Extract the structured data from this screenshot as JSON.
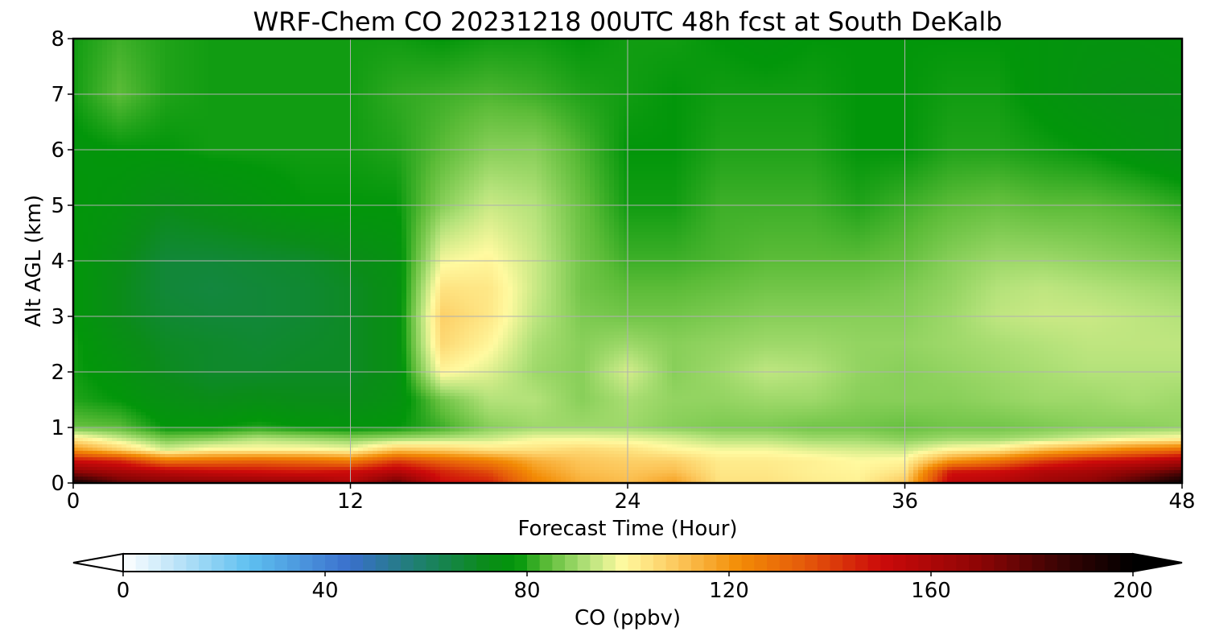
{
  "chart_data": {
    "type": "heatmap",
    "title": "WRF-Chem CO  20231218 00UTC 48h fcst at South DeKalb",
    "xlabel": "Forecast Time (Hour)",
    "ylabel": "Alt AGL (km)",
    "xlim": [
      0,
      48
    ],
    "ylim": [
      0,
      8
    ],
    "x_ticks": [
      0,
      12,
      24,
      36,
      48
    ],
    "y_ticks": [
      0,
      1,
      2,
      3,
      4,
      5,
      6,
      7,
      8
    ],
    "grid": true,
    "x_hours": [
      0,
      2,
      4,
      6,
      8,
      10,
      12,
      14,
      16,
      18,
      20,
      22,
      24,
      26,
      28,
      30,
      32,
      34,
      36,
      38,
      40,
      42,
      44,
      46,
      48
    ],
    "z_km": [
      0,
      0.2,
      0.4,
      0.6,
      0.8,
      1.0,
      1.5,
      2.0,
      2.5,
      3.0,
      3.5,
      4.0,
      5.0,
      6.0,
      7.0,
      8.0
    ],
    "co_ppbv": [
      [
        195,
        178,
        172,
        170,
        168,
        166,
        158,
        178,
        150,
        146,
        125,
        115,
        112,
        118,
        104,
        104,
        102,
        101,
        110,
        155,
        158,
        165,
        170,
        182,
        198
      ],
      [
        170,
        162,
        156,
        152,
        150,
        148,
        150,
        158,
        145,
        138,
        120,
        112,
        110,
        112,
        103,
        103,
        101,
        100,
        104,
        148,
        150,
        158,
        162,
        170,
        180
      ],
      [
        150,
        145,
        128,
        130,
        132,
        130,
        126,
        140,
        132,
        125,
        115,
        110,
        108,
        108,
        102,
        102,
        101,
        99,
        100,
        120,
        128,
        140,
        148,
        152,
        160
      ],
      [
        120,
        108,
        95,
        100,
        100,
        100,
        98,
        110,
        108,
        104,
        104,
        106,
        104,
        100,
        98,
        98,
        96,
        95,
        94,
        100,
        102,
        112,
        118,
        125,
        130
      ],
      [
        102,
        94,
        86,
        88,
        92,
        90,
        88,
        90,
        92,
        94,
        98,
        98,
        97,
        95,
        92,
        92,
        90,
        90,
        88,
        90,
        90,
        92,
        95,
        98,
        100
      ],
      [
        85,
        84,
        78,
        78,
        80,
        78,
        77,
        78,
        82,
        88,
        90,
        90,
        90,
        88,
        87,
        87,
        86,
        86,
        85,
        86,
        86,
        87,
        88,
        88,
        89
      ],
      [
        80,
        78,
        74,
        72,
        73,
        72,
        72,
        75,
        86,
        92,
        92,
        88,
        91,
        89,
        89,
        90,
        90,
        88,
        88,
        88,
        89,
        90,
        90,
        91,
        90
      ],
      [
        79,
        76,
        71,
        69,
        69,
        70,
        70,
        74,
        100,
        96,
        90,
        88,
        95,
        88,
        90,
        93,
        92,
        89,
        88,
        89,
        90,
        91,
        92,
        92,
        92
      ],
      [
        79,
        74,
        70,
        69,
        68,
        69,
        70,
        74,
        106,
        100,
        91,
        88,
        90,
        88,
        89,
        90,
        90,
        89,
        89,
        90,
        91,
        92,
        93,
        93,
        93
      ],
      [
        78,
        72,
        68,
        67,
        67,
        68,
        70,
        74,
        108,
        103,
        93,
        87,
        86,
        86,
        87,
        88,
        88,
        88,
        88,
        90,
        93,
        94,
        94,
        93,
        92
      ],
      [
        78,
        72,
        67,
        66,
        67,
        68,
        70,
        74,
        104,
        103,
        94,
        86,
        84,
        84,
        85,
        86,
        86,
        86,
        87,
        89,
        92,
        93,
        92,
        91,
        90
      ],
      [
        78,
        73,
        67,
        67,
        68,
        69,
        72,
        75,
        98,
        100,
        94,
        86,
        82,
        82,
        83,
        84,
        84,
        84,
        85,
        88,
        90,
        90,
        89,
        88,
        87
      ],
      [
        78,
        76,
        72,
        74,
        76,
        78,
        78,
        78,
        88,
        94,
        92,
        85,
        79,
        79,
        82,
        82,
        82,
        80,
        82,
        84,
        85,
        84,
        84,
        83,
        81
      ],
      [
        77,
        78,
        78,
        79,
        79,
        79,
        79,
        80,
        84,
        88,
        88,
        83,
        78,
        78,
        80,
        80,
        80,
        78,
        78,
        80,
        80,
        79,
        78,
        76,
        74
      ],
      [
        79,
        84,
        80,
        79,
        79,
        79,
        79,
        81,
        82,
        83,
        82,
        80,
        79,
        78,
        79,
        79,
        79,
        78,
        78,
        79,
        79,
        77,
        75,
        74,
        75
      ],
      [
        79,
        82,
        80,
        79,
        79,
        79,
        79,
        79,
        78,
        79,
        79,
        78,
        79,
        79,
        78,
        77,
        78,
        78,
        78,
        78,
        78,
        77,
        76,
        76,
        77
      ]
    ],
    "colorbar": {
      "label": "CO  (ppbv)",
      "min": 0,
      "max": 200,
      "ticks": [
        0,
        40,
        80,
        120,
        160,
        200
      ],
      "extend": "both",
      "stops": [
        {
          "v": 0,
          "c": "#ffffff"
        },
        {
          "v": 12,
          "c": "#b3e0f7"
        },
        {
          "v": 25,
          "c": "#5ec0f0"
        },
        {
          "v": 45,
          "c": "#3a6fcc"
        },
        {
          "v": 58,
          "c": "#1f7f72"
        },
        {
          "v": 72,
          "c": "#0a8c18"
        },
        {
          "v": 78,
          "c": "#02960a"
        },
        {
          "v": 84,
          "c": "#5cbc38"
        },
        {
          "v": 92,
          "c": "#b4e27a"
        },
        {
          "v": 99,
          "c": "#fffaa0"
        },
        {
          "v": 110,
          "c": "#fcc65a"
        },
        {
          "v": 122,
          "c": "#f38c05"
        },
        {
          "v": 135,
          "c": "#e55a0a"
        },
        {
          "v": 150,
          "c": "#cc0a0a"
        },
        {
          "v": 170,
          "c": "#8c0505"
        },
        {
          "v": 185,
          "c": "#3c0404"
        },
        {
          "v": 200,
          "c": "#000000"
        }
      ]
    }
  }
}
